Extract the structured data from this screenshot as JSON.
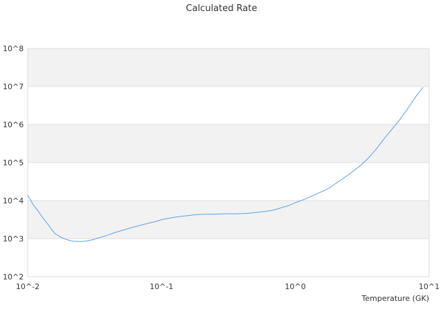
{
  "chart_data": {
    "type": "line",
    "title": "Calculated Rate",
    "xlabel": "Temperature (GK)",
    "ylabel": "",
    "xscale": "log",
    "yscale": "log",
    "xlim": [
      0.01,
      10
    ],
    "ylim": [
      100,
      100000000
    ],
    "x_ticks": [
      {
        "value": 0.01,
        "label": "10^-2"
      },
      {
        "value": 0.1,
        "label": "10^-1"
      },
      {
        "value": 1,
        "label": "10^0"
      },
      {
        "value": 10,
        "label": "10^1"
      }
    ],
    "y_ticks": [
      {
        "value": 100,
        "label": "10^2"
      },
      {
        "value": 1000,
        "label": "10^3"
      },
      {
        "value": 10000,
        "label": "10^4"
      },
      {
        "value": 100000,
        "label": "10^5"
      },
      {
        "value": 1000000,
        "label": "10^6"
      },
      {
        "value": 10000000,
        "label": "10^7"
      },
      {
        "value": 100000000,
        "label": "10^8"
      }
    ],
    "grid": true,
    "alternating_bands": true,
    "legend": "none",
    "colors": {
      "line": "#5aa0e6",
      "band": "#f2f2f2",
      "grid": "#dddddd"
    },
    "series": [
      {
        "x": [
          0.01,
          0.011,
          0.012,
          0.013,
          0.014,
          0.015,
          0.016,
          0.018,
          0.02,
          0.022,
          0.025,
          0.028,
          0.03,
          0.035,
          0.04,
          0.045,
          0.05,
          0.06,
          0.07,
          0.08,
          0.09,
          0.1,
          0.12,
          0.14,
          0.16,
          0.18,
          0.2,
          0.25,
          0.3,
          0.35,
          0.4,
          0.45,
          0.5,
          0.6,
          0.7,
          0.8,
          0.9,
          1.0,
          1.2,
          1.4,
          1.6,
          1.8,
          2.0,
          2.5,
          3.0,
          3.5,
          4.0,
          4.5,
          5.0,
          6.0,
          7.0,
          8.0,
          9.0
        ],
        "y": [
          13800,
          7800,
          5200,
          3500,
          2500,
          1800,
          1350,
          1050,
          920,
          850,
          840,
          880,
          920,
          1080,
          1250,
          1450,
          1620,
          1950,
          2250,
          2550,
          2800,
          3150,
          3550,
          3850,
          4050,
          4250,
          4350,
          4400,
          4500,
          4500,
          4550,
          4650,
          4850,
          5200,
          5700,
          6600,
          7500,
          8800,
          11200,
          14200,
          17500,
          21500,
          28000,
          48000,
          78000,
          130000,
          220000,
          380000,
          600000,
          1300000,
          2800000,
          5600000,
          9500000
        ]
      }
    ]
  }
}
